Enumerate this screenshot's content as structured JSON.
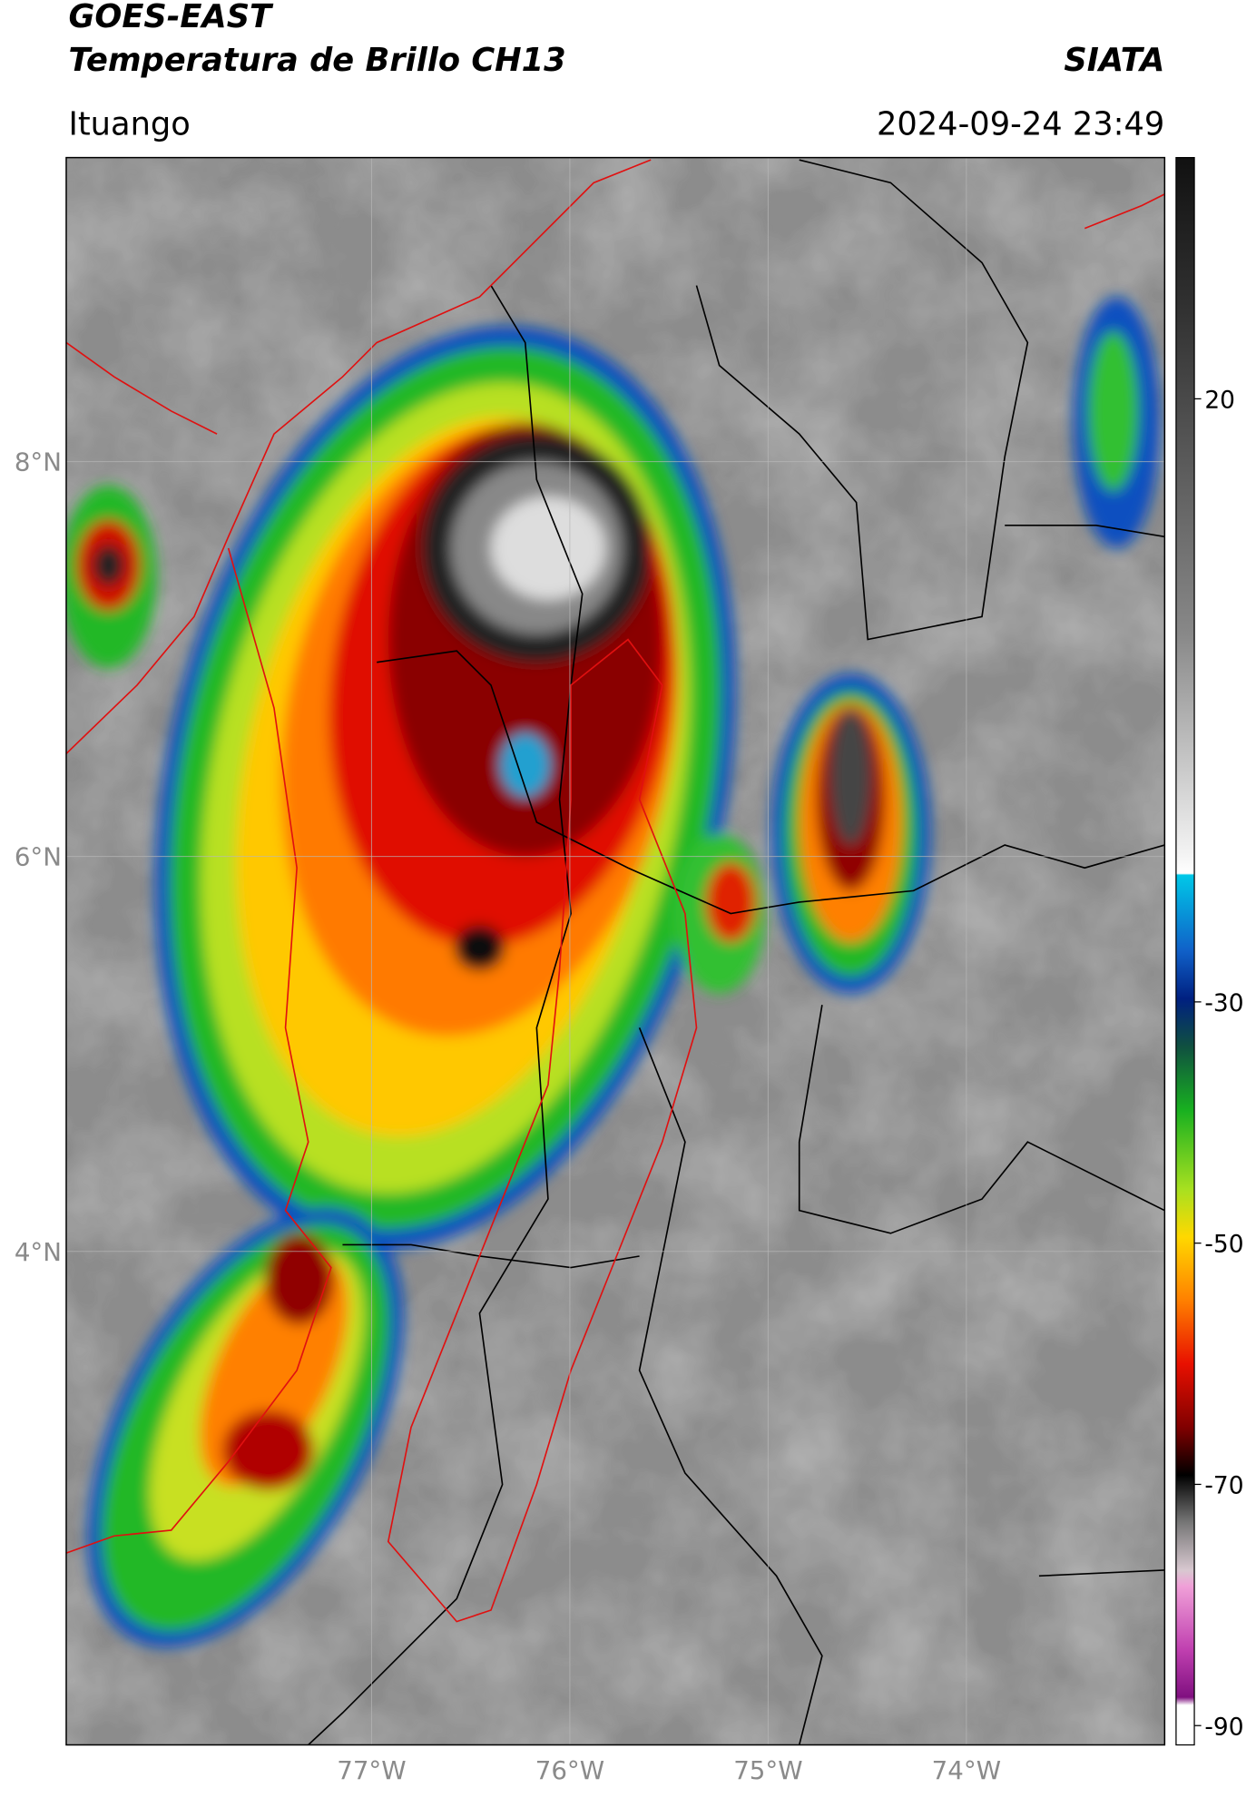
{
  "chart_data": {
    "type": "map",
    "title": "GOES-EAST",
    "subtitle": "Temperatura de Brillo CH13",
    "source": "SIATA",
    "location": "Ituango",
    "datetime": "2024-09-24 23:49",
    "xlim": [
      -78.54,
      -73.0
    ],
    "ylim": [
      1.5,
      9.54
    ],
    "xticks": [
      {
        "value": -77,
        "label": "77°W"
      },
      {
        "value": -76,
        "label": "76°W"
      },
      {
        "value": -75,
        "label": "75°W"
      },
      {
        "value": -74,
        "label": "74°W"
      }
    ],
    "yticks": [
      {
        "value": 4,
        "label": "4°N"
      },
      {
        "value": 6,
        "label": "6°N"
      },
      {
        "value": 8,
        "label": "8°N"
      }
    ],
    "colorbar_lim": [
      -91.6,
      40
    ],
    "colorbar_ticks": [
      20,
      -30,
      -50,
      -70,
      -90
    ],
    "grid": true
  }
}
